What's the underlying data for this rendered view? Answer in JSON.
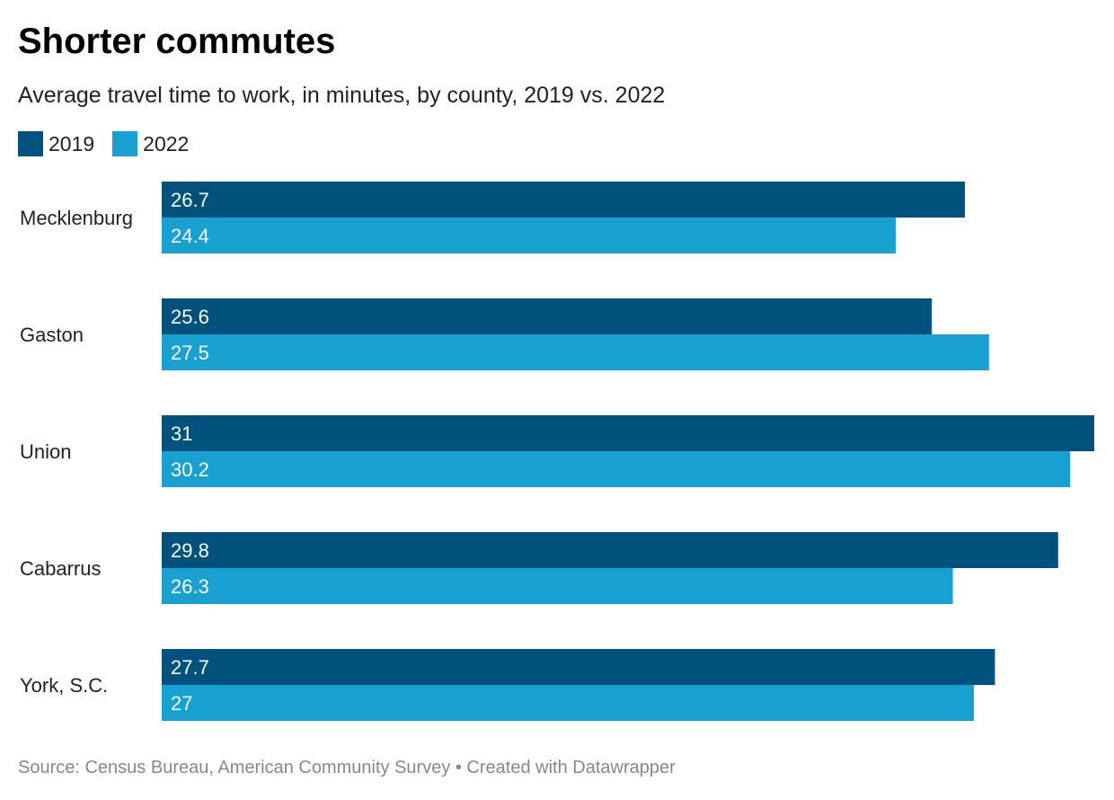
{
  "title": "Shorter commutes",
  "subtitle": "Average travel time to work, in minutes, by county, 2019 vs. 2022",
  "legend": [
    {
      "label": "2019",
      "color": "#00527c"
    },
    {
      "label": "2022",
      "color": "#18a1d0"
    }
  ],
  "source": "Source: Census Bureau, American Community Survey • Created with Datawrapper",
  "chart_data": {
    "type": "bar",
    "orientation": "horizontal",
    "title": "Shorter commutes",
    "subtitle": "Average travel time to work, in minutes, by county, 2019 vs. 2022",
    "categories": [
      "Mecklenburg",
      "Gaston",
      "Union",
      "Cabarrus",
      "York, S.C."
    ],
    "series": [
      {
        "name": "2019",
        "color": "#00527c",
        "values": [
          26.7,
          25.6,
          31,
          29.8,
          27.7
        ]
      },
      {
        "name": "2022",
        "color": "#18a1d0",
        "values": [
          24.4,
          27.5,
          30.2,
          26.3,
          27
        ]
      }
    ],
    "xlim": [
      0,
      31
    ],
    "grid": false,
    "legend_position": "top-left",
    "data_labels": "inside-left"
  }
}
